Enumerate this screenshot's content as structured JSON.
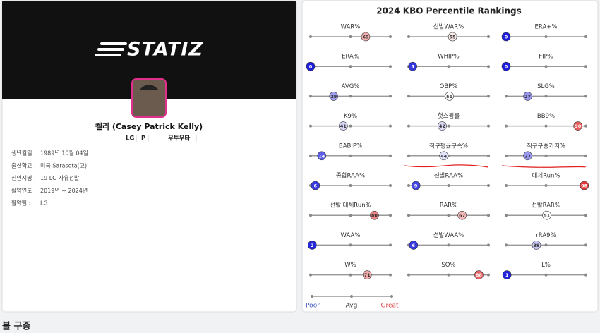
{
  "profile": {
    "logo": "STATIZ",
    "name": "켈리 (Casey Patrick Kelly)",
    "tags": [
      "LG",
      "P",
      "우투우타"
    ],
    "info": [
      {
        "label": "생년월일 :",
        "value": "1989년 10월 04일"
      },
      {
        "label": "출신학교 :",
        "value": "미국 Sarasota(고)"
      },
      {
        "label": "신인지명 :",
        "value": "19 LG 자유선발"
      },
      {
        "label": "활약연도 :",
        "value": "2019년 ~ 2024년"
      },
      {
        "label": "활약팀 :",
        "value": "LG"
      }
    ]
  },
  "rankings": {
    "title": "2024 KBO Percentile Rankings",
    "metrics": [
      {
        "label": "WAR%",
        "value": 69
      },
      {
        "label": "선발WAR%",
        "value": 55
      },
      {
        "label": "ERA+%",
        "value": 0
      },
      {
        "label": "ERA%",
        "value": 0
      },
      {
        "label": "WHIP%",
        "value": 5
      },
      {
        "label": "FIP%",
        "value": 0
      },
      {
        "label": "AVG%",
        "value": 29
      },
      {
        "label": "OBP%",
        "value": 51
      },
      {
        "label": "SLG%",
        "value": 27
      },
      {
        "label": "K9%",
        "value": 41
      },
      {
        "label": "헛스윙률",
        "value": 42
      },
      {
        "label": "BB9%",
        "value": 90
      },
      {
        "label": "BABIP%",
        "value": 14
      },
      {
        "label": "직구평균구속%",
        "value": 44
      },
      {
        "label": "직구구종가치%",
        "value": 27
      },
      {
        "label": "종합RAA%",
        "value": 6
      },
      {
        "label": "선발RAA%",
        "value": 9
      },
      {
        "label": "대체Run%",
        "value": 98
      },
      {
        "label": "선발 대체Run%",
        "value": 80
      },
      {
        "label": "RAR%",
        "value": 67
      },
      {
        "label": "선발RAR%",
        "value": 51
      },
      {
        "label": "WAA%",
        "value": 2
      },
      {
        "label": "선발WAA%",
        "value": 6
      },
      {
        "label": "rRA9%",
        "value": 38
      },
      {
        "label": "W%",
        "value": 71
      },
      {
        "label": "SO%",
        "value": 88
      },
      {
        "label": "L%",
        "value": 1
      }
    ],
    "legend": {
      "poor": "Poor",
      "avg": "Avg",
      "great": "Great"
    }
  },
  "section": "볼 구종"
}
